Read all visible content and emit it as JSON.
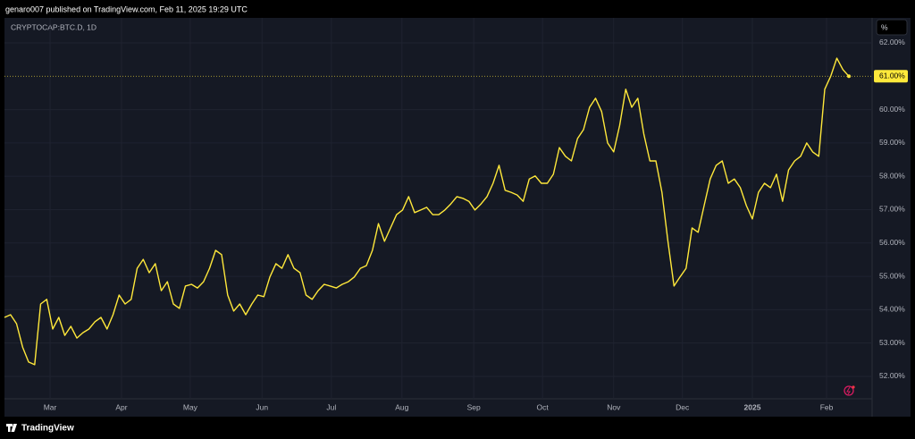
{
  "header": "genaro007 published on TradingView.com, Feb 11, 2025 19:29 UTC",
  "footer": "TradingView",
  "chart_data": {
    "type": "line",
    "title": "CRYPTOCAP:BTC.D, 1D",
    "unit_button": "%",
    "color": "#ffe83b",
    "grid": true,
    "ylim": [
      50.82,
      62.75
    ],
    "yticks": [
      {
        "value": 52,
        "label": "52.00%"
      },
      {
        "value": 53,
        "label": "53.00%"
      },
      {
        "value": 54,
        "label": "54.00%"
      },
      {
        "value": 55,
        "label": "55.00%"
      },
      {
        "value": 56,
        "label": "56.00%"
      },
      {
        "value": 57,
        "label": "57.00%"
      },
      {
        "value": 58,
        "label": "58.00%"
      },
      {
        "value": 59,
        "label": "59.00%"
      },
      {
        "value": 60,
        "label": "60.00%"
      },
      {
        "value": 62,
        "label": "62.00%"
      }
    ],
    "last": {
      "value": 61,
      "label": "61.00%"
    },
    "xlim": [
      0,
      143.7
    ],
    "xticks": [
      {
        "value": 7.56,
        "label": "Mar"
      },
      {
        "value": 19.4,
        "label": "Apr"
      },
      {
        "value": 30.8,
        "label": "May"
      },
      {
        "value": 42.7,
        "label": "Jun"
      },
      {
        "value": 54.2,
        "label": "Jul"
      },
      {
        "value": 65.9,
        "label": "Aug"
      },
      {
        "value": 77.8,
        "label": "Sep"
      },
      {
        "value": 89.2,
        "label": "Oct"
      },
      {
        "value": 101,
        "label": "Nov"
      },
      {
        "value": 112.4,
        "label": "Dec"
      },
      {
        "value": 124,
        "label": "2025"
      },
      {
        "value": 136.3,
        "label": "Feb"
      }
    ],
    "values": [
      53.77,
      53.85,
      53.58,
      52.88,
      52.43,
      52.35,
      54.17,
      54.31,
      53.42,
      53.77,
      53.23,
      53.5,
      53.15,
      53.31,
      53.42,
      53.64,
      53.77,
      53.42,
      53.85,
      54.44,
      54.17,
      54.31,
      55.24,
      55.51,
      55.11,
      55.38,
      54.57,
      54.84,
      54.17,
      54.04,
      54.71,
      54.76,
      54.65,
      54.84,
      55.24,
      55.78,
      55.65,
      54.44,
      53.96,
      54.17,
      53.85,
      54.17,
      54.44,
      54.39,
      54.98,
      55.38,
      55.24,
      55.65,
      55.24,
      55.11,
      54.44,
      54.31,
      54.57,
      54.76,
      54.71,
      54.65,
      54.76,
      54.84,
      54.98,
      55.24,
      55.32,
      55.78,
      56.58,
      56.05,
      56.45,
      56.85,
      56.99,
      57.39,
      56.91,
      56.99,
      57.07,
      56.85,
      56.85,
      56.99,
      57.17,
      57.39,
      57.34,
      57.25,
      56.99,
      57.17,
      57.39,
      57.79,
      58.33,
      57.58,
      57.52,
      57.44,
      57.25,
      57.92,
      58.01,
      57.79,
      57.79,
      58.06,
      58.86,
      58.6,
      58.46,
      59.13,
      59.4,
      60.07,
      60.34,
      59.94,
      59.0,
      58.73,
      59.53,
      60.61,
      60.07,
      60.34,
      59.27,
      58.46,
      58.46,
      57.52,
      56.05,
      54.71,
      54.98,
      55.24,
      56.45,
      56.32,
      57.12,
      57.92,
      58.33,
      58.46,
      57.79,
      57.92,
      57.66,
      57.12,
      56.72,
      57.52,
      57.79,
      57.66,
      58.06,
      57.25,
      58.19,
      58.46,
      58.6,
      59.0,
      58.73,
      58.6,
      60.61,
      61.01,
      61.54,
      61.2,
      61.0
    ]
  }
}
